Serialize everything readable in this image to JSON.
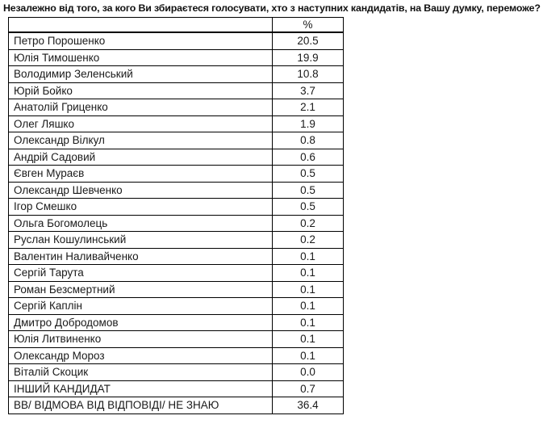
{
  "title": "Незалежно від того, за кого Ви збираєтеся голосувати, хто з наступних кандидатів, на Вашу думку, переможе?",
  "table": {
    "header": {
      "name_label": "",
      "percent_label": "%"
    },
    "rows": [
      {
        "name": "Петро Порошенко",
        "percent": "20.5"
      },
      {
        "name": "Юлія Тимошенко",
        "percent": "19.9"
      },
      {
        "name": "Володимир Зеленський",
        "percent": "10.8"
      },
      {
        "name": "Юрій Бойко",
        "percent": "3.7"
      },
      {
        "name": "Анатолій Гриценко",
        "percent": "2.1"
      },
      {
        "name": "Олег Ляшко",
        "percent": "1.9"
      },
      {
        "name": "Олександр Вілкул",
        "percent": "0.8"
      },
      {
        "name": "Андрій Садовий",
        "percent": "0.6"
      },
      {
        "name": "Євген Мураєв",
        "percent": "0.5"
      },
      {
        "name": "Олександр Шевченко",
        "percent": "0.5"
      },
      {
        "name": "Ігор Смешко",
        "percent": "0.5"
      },
      {
        "name": "Ольга Богомолець",
        "percent": "0.2"
      },
      {
        "name": "Руслан Кошулинський",
        "percent": "0.2"
      },
      {
        "name": "Валентин Наливайченко",
        "percent": "0.1"
      },
      {
        "name": "Сергій Тарута",
        "percent": "0.1"
      },
      {
        "name": "Роман Безсмертний",
        "percent": "0.1"
      },
      {
        "name": "Сергій Каплін",
        "percent": "0.1"
      },
      {
        "name": "Дмитро Добродомов",
        "percent": "0.1"
      },
      {
        "name": "Юлія Литвиненко",
        "percent": "0.1"
      },
      {
        "name": "Олександр Мороз",
        "percent": "0.1"
      },
      {
        "name": "Віталій Скоцик",
        "percent": "0.0"
      },
      {
        "name": "ІНШИЙ КАНДИДАТ",
        "percent": "0.7"
      },
      {
        "name": "ВВ/ ВІДМОВА ВІД ВІДПОВІДІ/ НЕ ЗНАЮ",
        "percent": "36.4"
      }
    ]
  },
  "colors": {
    "background": "#ffffff",
    "border": "#000000",
    "text": "#1a1a1a"
  }
}
